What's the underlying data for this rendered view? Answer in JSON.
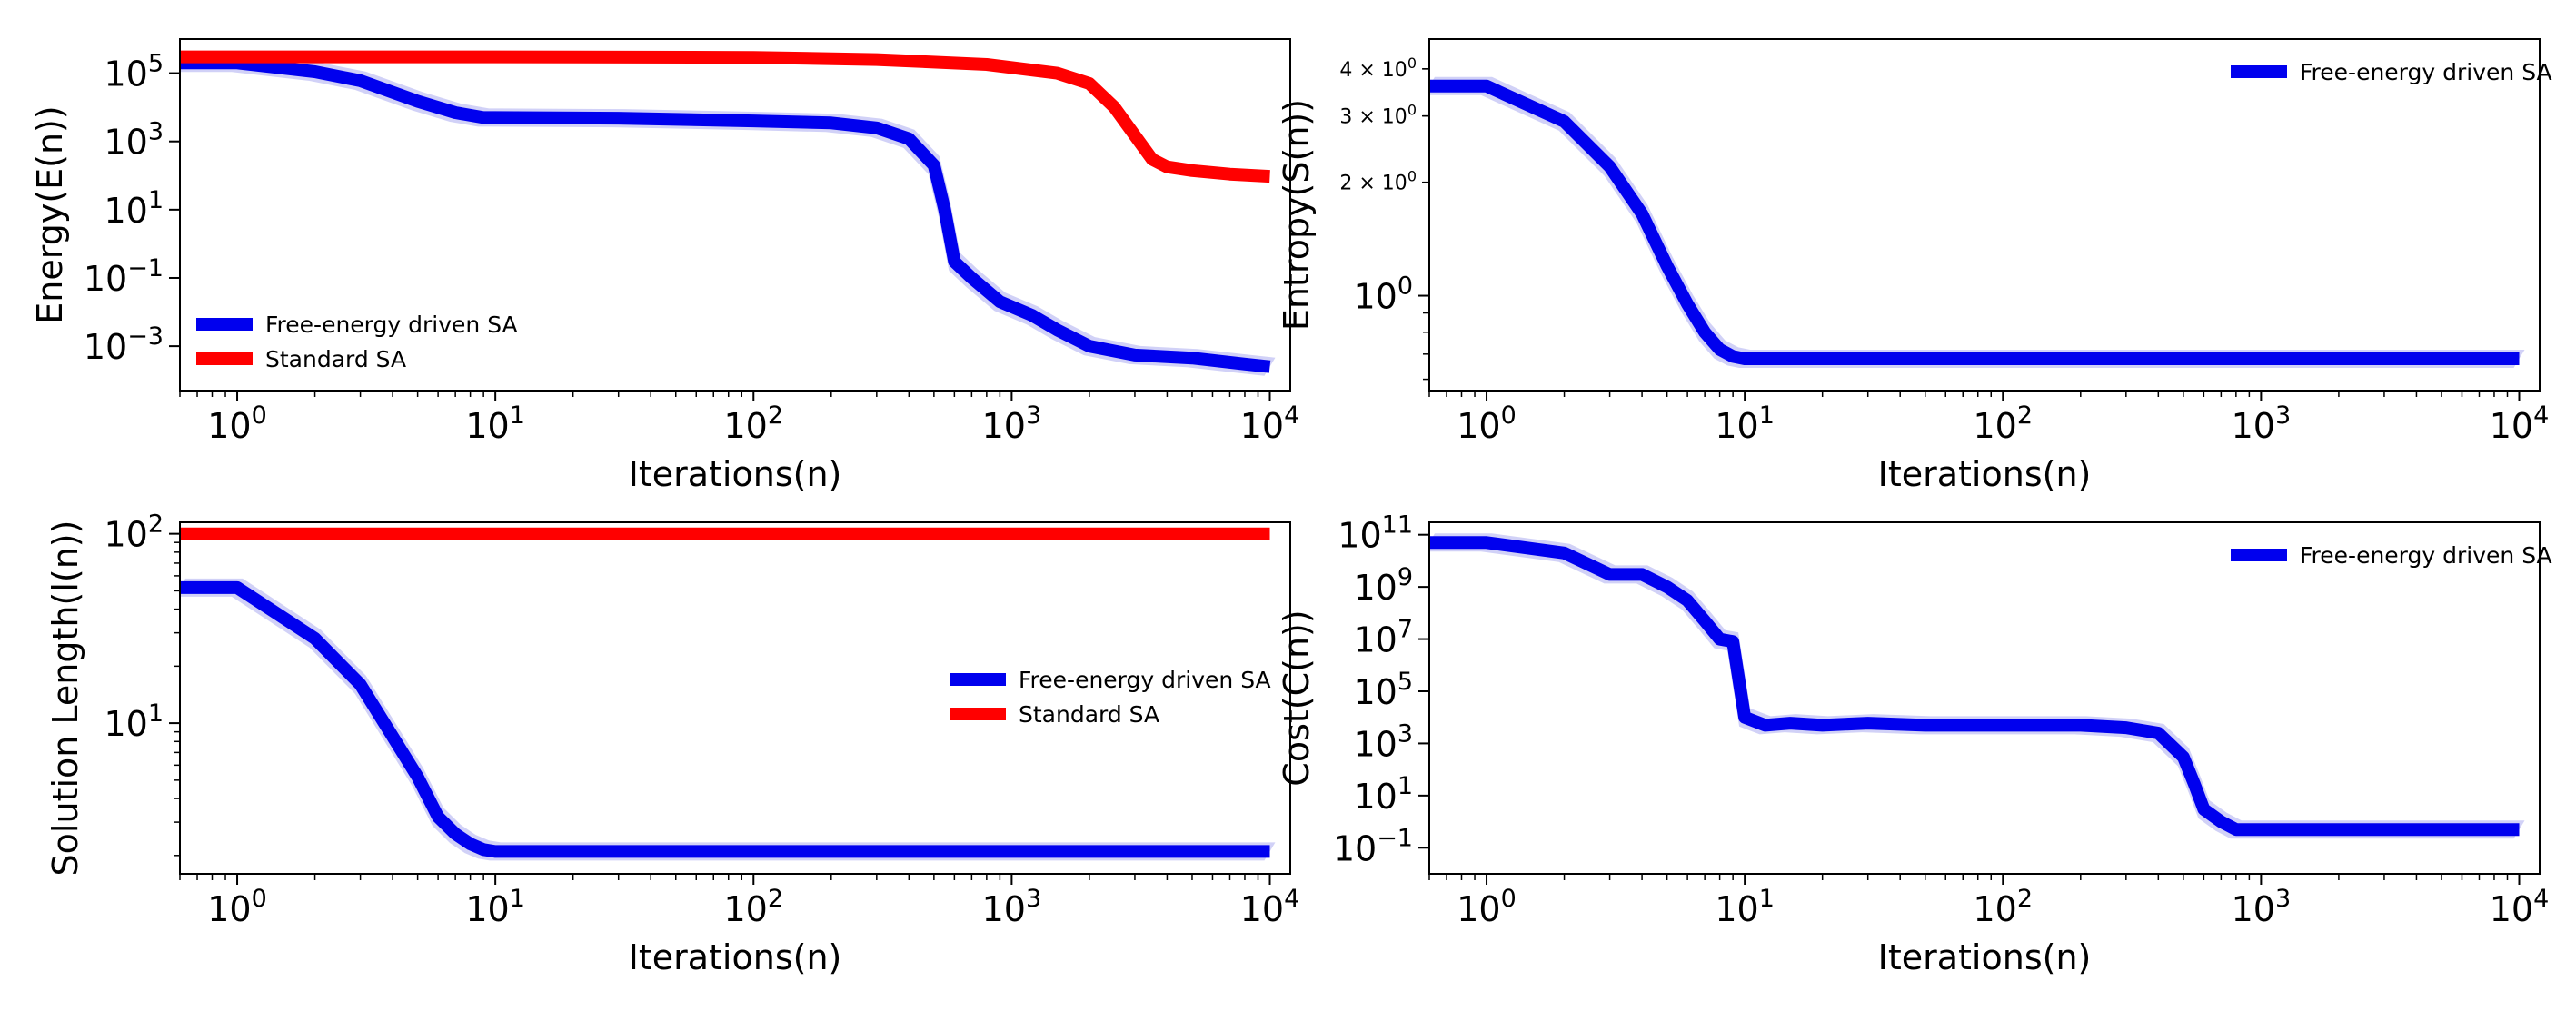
{
  "colors": {
    "blue": "#0000ee",
    "red": "#ff0000",
    "band": "#9999ee"
  },
  "chart_data": [
    {
      "id": "energy",
      "type": "line",
      "xlabel": "Iterations(n)",
      "ylabel": "Energy(E(n))",
      "xscale": "log",
      "yscale": "log",
      "xlim": [
        0.6,
        12000
      ],
      "ylim": [
        5e-05,
        1000000
      ],
      "xticks": [
        {
          "v": 1,
          "base": "10",
          "exp": "0"
        },
        {
          "v": 10,
          "base": "10",
          "exp": "1"
        },
        {
          "v": 100,
          "base": "10",
          "exp": "2"
        },
        {
          "v": 1000,
          "base": "10",
          "exp": "3"
        },
        {
          "v": 10000,
          "base": "10",
          "exp": "4"
        }
      ],
      "yticks": [
        {
          "v": 100000,
          "base": "10",
          "exp": "5"
        },
        {
          "v": 1000,
          "base": "10",
          "exp": "3"
        },
        {
          "v": 10,
          "base": "10",
          "exp": "1"
        },
        {
          "v": 0.1,
          "base": "10",
          "exp": "−1"
        },
        {
          "v": 0.001,
          "base": "10",
          "exp": "−3"
        }
      ],
      "legend": {
        "position": "lower-left",
        "entries": [
          "Free-energy driven SA",
          "Standard SA"
        ]
      },
      "series": [
        {
          "name": "Free-energy driven SA",
          "color": "blue",
          "x": [
            0.6,
            1,
            2,
            3,
            5,
            7,
            9,
            10,
            30,
            100,
            200,
            300,
            400,
            500,
            550,
            600,
            700,
            900,
            1200,
            1500,
            2000,
            3000,
            5000,
            8000,
            10000
          ],
          "y": [
            200000,
            200000,
            110000,
            60000,
            15000,
            7000,
            5000,
            5000,
            4800,
            4000,
            3500,
            2500,
            1200,
            200,
            10,
            0.3,
            0.1,
            0.02,
            0.008,
            0.003,
            0.001,
            0.00055,
            0.00045,
            0.0003,
            0.00025
          ]
        },
        {
          "name": "Standard SA",
          "color": "red",
          "x": [
            0.6,
            1,
            10,
            100,
            300,
            800,
            1500,
            2000,
            2500,
            3000,
            3500,
            4000,
            5000,
            7000,
            10000
          ],
          "y": [
            300000,
            300000,
            300000,
            290000,
            250000,
            180000,
            100000,
            50000,
            10000,
            1500,
            300,
            180,
            140,
            110,
            95
          ]
        }
      ]
    },
    {
      "id": "entropy",
      "type": "line",
      "xlabel": "Iterations(n)",
      "ylabel": "Entropy(S(n))",
      "xscale": "log",
      "yscale": "log",
      "xlim": [
        0.6,
        12000
      ],
      "ylim": [
        0.56,
        4.8
      ],
      "xticks": [
        {
          "v": 1,
          "base": "10",
          "exp": "0"
        },
        {
          "v": 10,
          "base": "10",
          "exp": "1"
        },
        {
          "v": 100,
          "base": "10",
          "exp": "2"
        },
        {
          "v": 1000,
          "base": "10",
          "exp": "3"
        },
        {
          "v": 10000,
          "base": "10",
          "exp": "4"
        }
      ],
      "yticks": [
        {
          "v": 1,
          "base": "10",
          "exp": "0"
        }
      ],
      "yminorticks": [
        {
          "v": 4,
          "text": "4 × 10",
          "exp": "0"
        },
        {
          "v": 3,
          "text": "3 × 10",
          "exp": "0"
        },
        {
          "v": 2,
          "text": "2 × 10",
          "exp": "0"
        }
      ],
      "legend": {
        "position": "upper-right",
        "entries": [
          "Free-energy driven SA"
        ]
      },
      "series": [
        {
          "name": "Free-energy driven SA",
          "color": "blue",
          "x": [
            0.6,
            1,
            2,
            3,
            4,
            5,
            6,
            7,
            8,
            9,
            10,
            10000
          ],
          "y": [
            3.6,
            3.6,
            2.9,
            2.2,
            1.65,
            1.2,
            0.95,
            0.8,
            0.72,
            0.69,
            0.68,
            0.68
          ]
        }
      ]
    },
    {
      "id": "solution-length",
      "type": "line",
      "xlabel": "Iterations(n)",
      "ylabel": "Solution Length(l(n))",
      "xscale": "log",
      "yscale": "log",
      "xlim": [
        0.6,
        12000
      ],
      "ylim": [
        1.6,
        115
      ],
      "xticks": [
        {
          "v": 1,
          "base": "10",
          "exp": "0"
        },
        {
          "v": 10,
          "base": "10",
          "exp": "1"
        },
        {
          "v": 100,
          "base": "10",
          "exp": "2"
        },
        {
          "v": 1000,
          "base": "10",
          "exp": "3"
        },
        {
          "v": 10000,
          "base": "10",
          "exp": "4"
        }
      ],
      "yticks": [
        {
          "v": 100,
          "base": "10",
          "exp": "2"
        },
        {
          "v": 10,
          "base": "10",
          "exp": "1"
        }
      ],
      "legend": {
        "position": "center-right",
        "entries": [
          "Free-energy driven SA",
          "Standard SA"
        ]
      },
      "series": [
        {
          "name": "Free-energy driven SA",
          "color": "blue",
          "x": [
            0.6,
            1,
            2,
            3,
            4,
            5,
            6,
            7,
            8,
            9,
            10,
            10000
          ],
          "y": [
            52,
            52,
            28,
            16,
            8.5,
            5.2,
            3.2,
            2.6,
            2.3,
            2.15,
            2.1,
            2.1
          ]
        },
        {
          "name": "Standard SA",
          "color": "red",
          "x": [
            0.6,
            10000
          ],
          "y": [
            100,
            100
          ]
        }
      ]
    },
    {
      "id": "cost",
      "type": "line",
      "xlabel": "Iterations(n)",
      "ylabel": "Cost(C(n))",
      "xscale": "log",
      "yscale": "log",
      "xlim": [
        0.6,
        12000
      ],
      "ylim": [
        0.01,
        300000000000
      ],
      "xticks": [
        {
          "v": 1,
          "base": "10",
          "exp": "0"
        },
        {
          "v": 10,
          "base": "10",
          "exp": "1"
        },
        {
          "v": 100,
          "base": "10",
          "exp": "2"
        },
        {
          "v": 1000,
          "base": "10",
          "exp": "3"
        },
        {
          "v": 10000,
          "base": "10",
          "exp": "4"
        }
      ],
      "yticks": [
        {
          "v": 100000000000,
          "base": "10",
          "exp": "11"
        },
        {
          "v": 1000000000,
          "base": "10",
          "exp": "9"
        },
        {
          "v": 10000000,
          "base": "10",
          "exp": "7"
        },
        {
          "v": 100000,
          "base": "10",
          "exp": "5"
        },
        {
          "v": 1000,
          "base": "10",
          "exp": "3"
        },
        {
          "v": 10,
          "base": "10",
          "exp": "1"
        },
        {
          "v": 0.1,
          "base": "10",
          "exp": "−1"
        }
      ],
      "legend": {
        "position": "upper-right",
        "entries": [
          "Free-energy driven SA"
        ]
      },
      "series": [
        {
          "name": "Free-energy driven SA",
          "color": "blue",
          "x": [
            0.6,
            1,
            2,
            3,
            4,
            5,
            6,
            7,
            8,
            9,
            10,
            12,
            15,
            20,
            30,
            50,
            100,
            200,
            300,
            400,
            500,
            550,
            600,
            700,
            800,
            1000,
            2000,
            5000,
            10000
          ],
          "y": [
            50000000000,
            50000000000,
            20000000000,
            3000000000,
            3000000000,
            1000000000,
            300000000,
            50000000,
            10000000,
            8000000,
            10000,
            5000,
            6000,
            5000,
            6000,
            5000,
            5000,
            5000,
            4000,
            2500,
            300,
            30,
            3,
            1,
            0.5,
            0.5,
            0.5,
            0.5,
            0.5
          ]
        }
      ]
    }
  ]
}
